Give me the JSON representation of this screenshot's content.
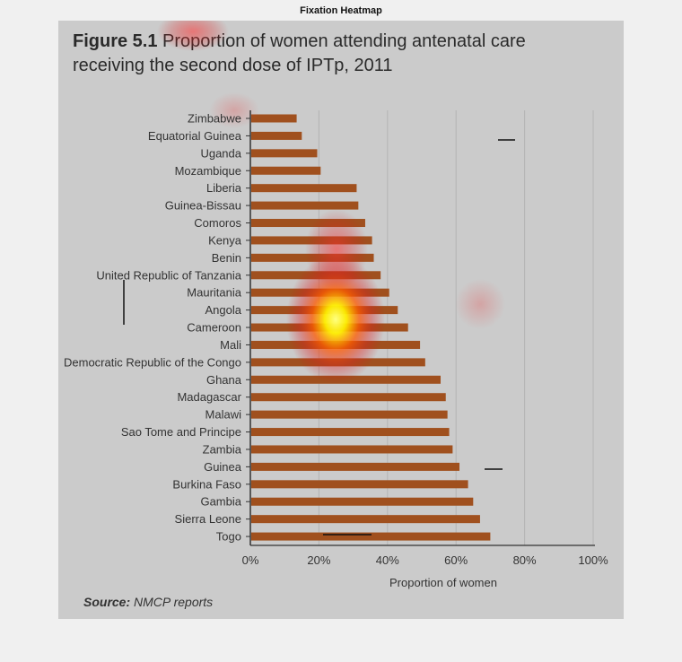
{
  "window": {
    "title": "Fixation Heatmap"
  },
  "figure": {
    "number": "Figure 5.1",
    "title_line1": "Proportion of women attending antenatal care",
    "title_line2": "receiving the second dose of IPTp, 2011",
    "source_label": "Source:",
    "source_text": "NMCP reports"
  },
  "colors": {
    "bar": "#a0501e",
    "grid": "#b4b4b4",
    "axis": "#333333",
    "panel": "#cbcbcb"
  },
  "chart_data": {
    "type": "bar",
    "orientation": "horizontal",
    "title": "Proportion of women attending antenatal care receiving the second dose of IPTp, 2011",
    "xlabel": "Proportion of women",
    "ylabel": "",
    "xlim": [
      0,
      100
    ],
    "xticks": [
      "0%",
      "20%",
      "40%",
      "60%",
      "80%",
      "100%"
    ],
    "grid": true,
    "categories": [
      "Zimbabwe",
      "Equatorial Guinea",
      "Uganda",
      "Mozambique",
      "Liberia",
      "Guinea-Bissau",
      "Comoros",
      "Kenya",
      "Benin",
      "United Republic of Tanzania",
      "Mauritania",
      "Angola",
      "Cameroon",
      "Mali",
      "Democratic Republic of the Congo",
      "Ghana",
      "Madagascar",
      "Malawi",
      "Sao Tome and Principe",
      "Zambia",
      "Guinea",
      "Burkina Faso",
      "Gambia",
      "Sierra Leone",
      "Togo"
    ],
    "values": [
      13.5,
      15,
      19.5,
      20.5,
      31,
      31.5,
      33.5,
      35.5,
      36,
      38,
      40.5,
      43,
      46,
      49.5,
      51,
      55.5,
      57,
      57.5,
      58,
      59,
      61,
      63.5,
      65,
      67,
      70
    ]
  }
}
